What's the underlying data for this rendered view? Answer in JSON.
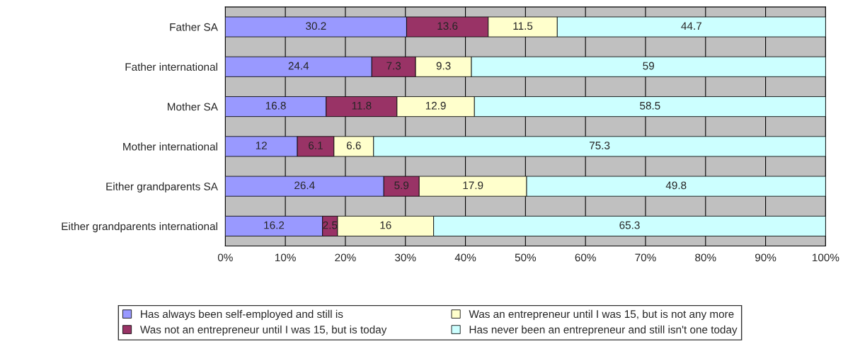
{
  "chart_data": {
    "type": "bar",
    "orientation": "horizontal",
    "stacked": true,
    "categories": [
      "Father SA",
      "Father international",
      "Mother SA",
      "Mother international",
      "Either grandparents SA",
      "Either grandparents international"
    ],
    "series": [
      {
        "name": "Has always been self-employed and still is",
        "color": "#9999ff",
        "values": [
          30.2,
          24.4,
          16.8,
          12,
          26.4,
          16.2
        ]
      },
      {
        "name": "Was not an entrepreneur until I was 15, but is today",
        "color": "#993366",
        "values": [
          13.6,
          7.3,
          11.8,
          6.1,
          5.9,
          2.5
        ]
      },
      {
        "name": "Was an entrepreneur until I was 15, but is not any more",
        "color": "#ffffcc",
        "values": [
          11.5,
          9.3,
          12.9,
          6.6,
          17.9,
          16
        ]
      },
      {
        "name": "Has never been an entrepreneur and still isn't one today",
        "color": "#ccffff",
        "values": [
          44.7,
          59,
          58.5,
          75.3,
          49.8,
          65.3
        ]
      }
    ],
    "xlim": [
      0,
      100
    ],
    "xticks": [
      {
        "value": 0,
        "label": "0%"
      },
      {
        "value": 10,
        "label": "10%"
      },
      {
        "value": 20,
        "label": "20%"
      },
      {
        "value": 30,
        "label": "30%"
      },
      {
        "value": 40,
        "label": "40%"
      },
      {
        "value": 50,
        "label": "50%"
      },
      {
        "value": 60,
        "label": "60%"
      },
      {
        "value": 70,
        "label": "70%"
      },
      {
        "value": 80,
        "label": "80%"
      },
      {
        "value": 90,
        "label": "90%"
      },
      {
        "value": 100,
        "label": "100%"
      }
    ],
    "grid": "x",
    "data_labels": true,
    "legend": "bottom"
  }
}
